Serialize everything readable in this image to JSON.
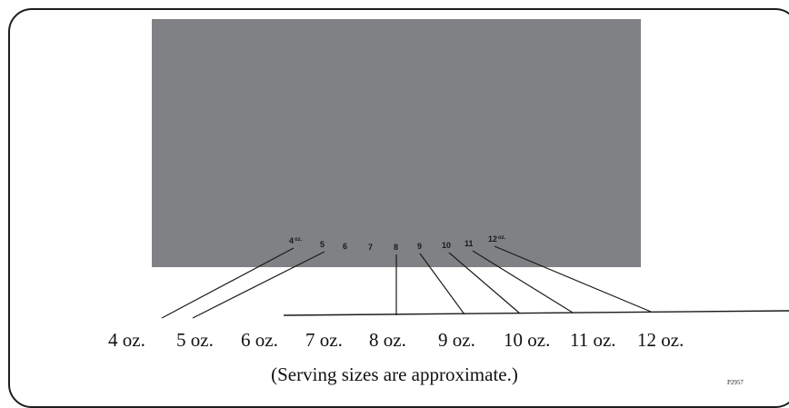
{
  "diagram": {
    "panel_color": "#808184",
    "panel_ticks": [
      {
        "num": "4",
        "unit": "oz."
      },
      {
        "num": "5",
        "unit": ""
      },
      {
        "num": "6",
        "unit": ""
      },
      {
        "num": "7",
        "unit": ""
      },
      {
        "num": "8",
        "unit": ""
      },
      {
        "num": "9",
        "unit": ""
      },
      {
        "num": "10",
        "unit": ""
      },
      {
        "num": "11",
        "unit": ""
      },
      {
        "num": "12",
        "unit": "oz."
      }
    ],
    "size_labels": [
      "4 oz.",
      "5 oz.",
      "6 oz.",
      "7 oz.",
      "8 oz.",
      "9 oz.",
      "10 oz.",
      "11 oz.",
      "12 oz."
    ],
    "note": "(Serving sizes are approximate.)",
    "part_number": "P2957"
  }
}
